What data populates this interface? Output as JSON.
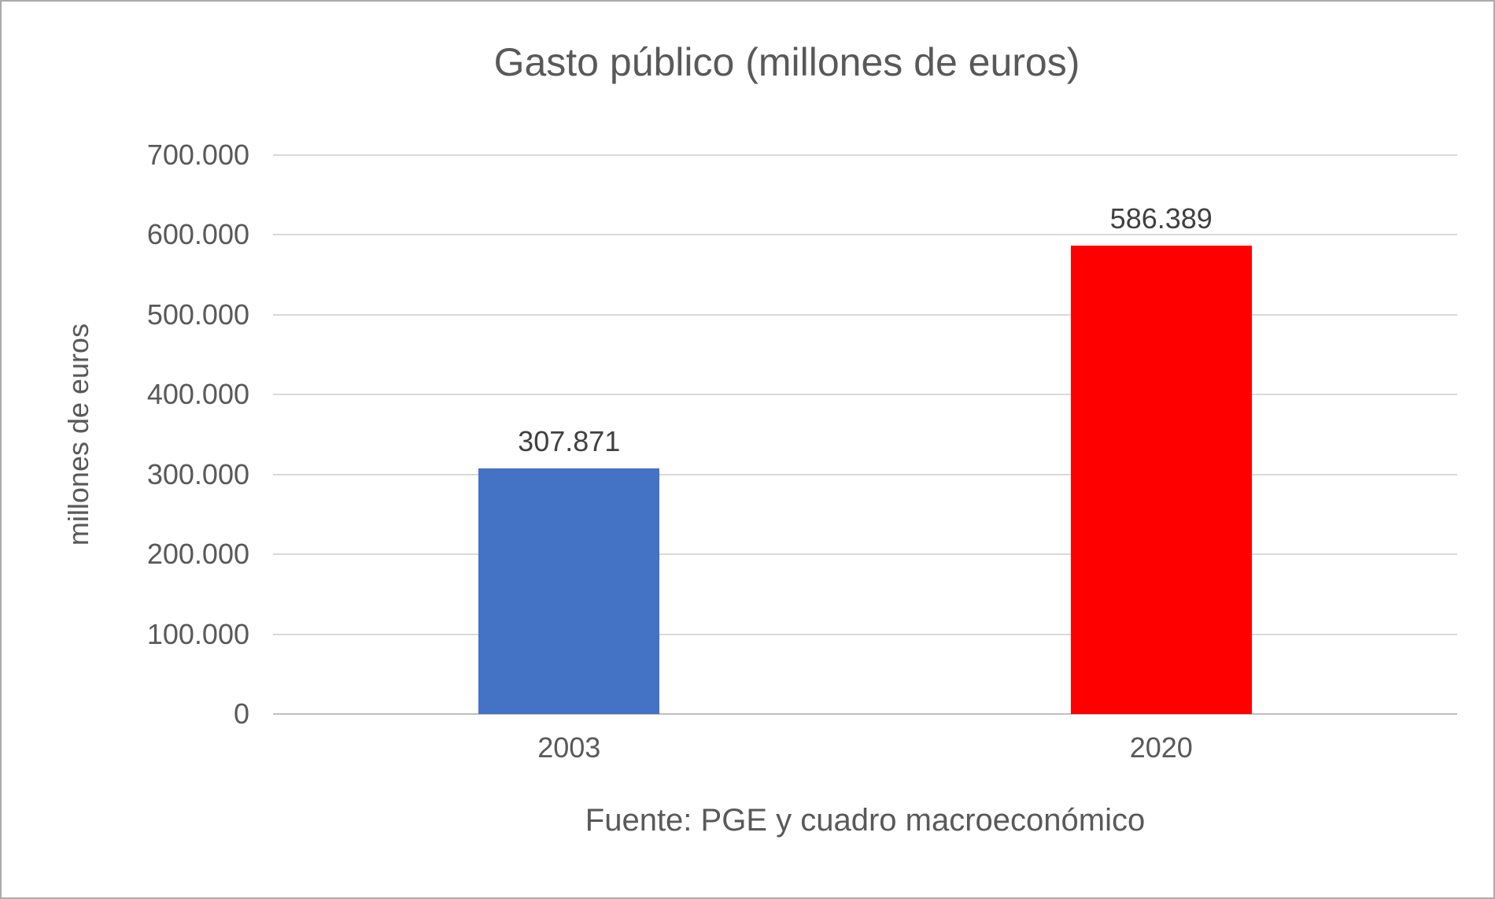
{
  "chart_data": {
    "type": "bar",
    "title": "Gasto público (millones de euros)",
    "ylabel": "millones de euros",
    "xlabel": "",
    "source": "Fuente: PGE y cuadro macroeconómico",
    "categories": [
      "2003",
      "2020"
    ],
    "values": [
      307871,
      586389
    ],
    "value_labels": [
      "307.871",
      "586.389"
    ],
    "bar_colors": [
      "#4472C4",
      "#FF0000"
    ],
    "ylim": [
      0,
      700000
    ],
    "y_tick_step": 100000,
    "y_tick_labels": [
      "0",
      "100.000",
      "200.000",
      "300.000",
      "400.000",
      "500.000",
      "600.000",
      "700.000"
    ],
    "grid": true,
    "legend": "none",
    "colors": {
      "text": "#595959",
      "gridline": "#d9d9d9",
      "axis": "#bfbfbf",
      "border": "#ababab",
      "background": "#ffffff"
    }
  }
}
